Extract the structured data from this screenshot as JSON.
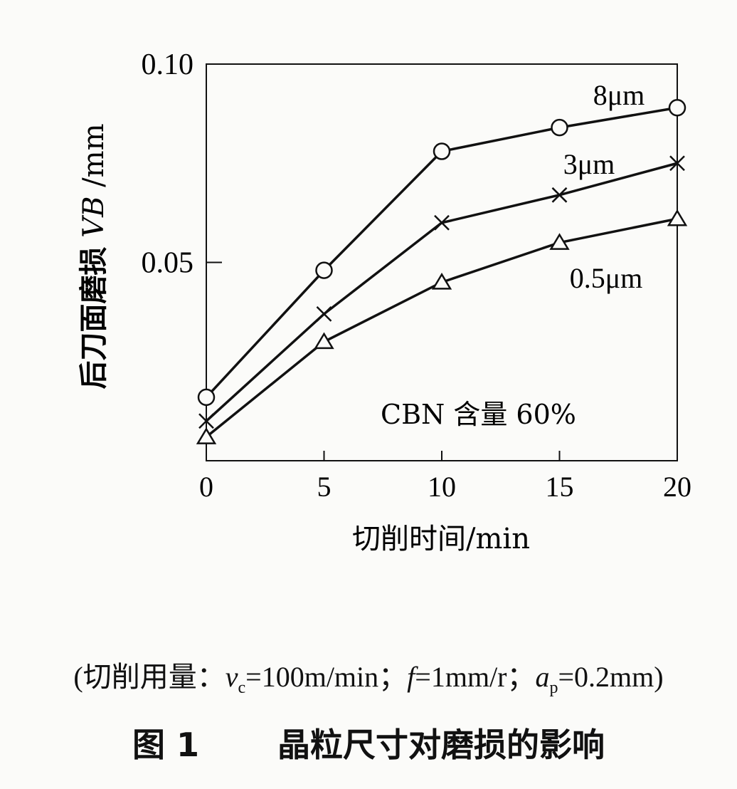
{
  "chart_data": {
    "type": "line",
    "title": "",
    "xlabel": "切削时间/min",
    "ylabel_cn": "后刀面磨损",
    "ylabel_sym": "VB",
    "ylabel_unit": "/mm",
    "xlim": [
      0,
      20
    ],
    "ylim": [
      0.0,
      0.1
    ],
    "x": [
      0,
      5,
      10,
      15,
      20
    ],
    "x_ticks": [
      "0",
      "5",
      "10",
      "15",
      "20"
    ],
    "y_ticks": [
      {
        "value": 0.1,
        "label": "0.10"
      },
      {
        "value": 0.05,
        "label": "0.05"
      }
    ],
    "grid": false,
    "annotation": "CBN 含量 60%",
    "series": [
      {
        "name": "8μm",
        "marker": "circle",
        "values": [
          0.016,
          0.048,
          0.078,
          0.084,
          0.089
        ]
      },
      {
        "name": "3μm",
        "marker": "cross",
        "values": [
          0.01,
          0.037,
          0.06,
          0.067,
          0.075
        ]
      },
      {
        "name": "0.5μm",
        "marker": "triangle",
        "values": [
          0.006,
          0.03,
          0.045,
          0.055,
          0.061
        ]
      }
    ]
  },
  "caption": {
    "params_prefix": "(切削用量：",
    "vc_sym": "v",
    "vc_sub": "c",
    "vc_val": "=100m/min；",
    "f_sym": "f",
    "f_val": "=1mm/r；",
    "ap_sym": "a",
    "ap_sub": "p",
    "ap_val": "=0.2mm)",
    "figure_label": "图 1",
    "figure_title": "晶粒尺寸对磨损的影响"
  }
}
